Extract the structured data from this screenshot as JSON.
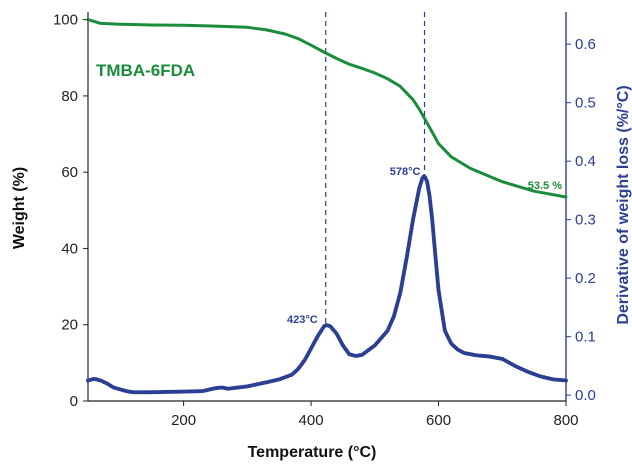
{
  "chart_data": {
    "type": "line",
    "title": "",
    "xlabel": "Temperature (°C)",
    "ylabel_left": "Weight (%)",
    "ylabel_right": "Derivative of weight loss (%/°C)",
    "xlim": [
      50,
      800
    ],
    "ylim_left": [
      0,
      102
    ],
    "ylim_right": [
      -0.01,
      0.655
    ],
    "x_ticks": [
      200,
      400,
      600,
      800
    ],
    "y_left_ticks": [
      0,
      20,
      40,
      60,
      80,
      100
    ],
    "y_right_ticks": [
      0.0,
      0.1,
      0.2,
      0.3,
      0.4,
      0.5,
      0.6
    ],
    "y_right_tick_labels": [
      "0.0",
      "0.1",
      "0.2",
      "0.3",
      "0.4",
      "0.5",
      "0.6"
    ],
    "grid": false,
    "colors": {
      "weight": "#1a8c3c",
      "derivative": "#2b3f93",
      "axis": "#222222"
    },
    "sample_label": "TMBA-6FDA",
    "series": [
      {
        "axis": "left",
        "line_style": "solid",
        "x": [
          50,
          70,
          100,
          150,
          200,
          250,
          300,
          330,
          360,
          380,
          400,
          420,
          440,
          460,
          480,
          500,
          520,
          540,
          560,
          570,
          580,
          590,
          600,
          620,
          650,
          700,
          750,
          800
        ],
        "values": [
          100,
          99,
          98.8,
          98.6,
          98.5,
          98.3,
          98.0,
          97.3,
          96.2,
          95.0,
          93.3,
          91.5,
          89.8,
          88.3,
          87.2,
          86.0,
          84.5,
          82.5,
          79.0,
          76.5,
          73.5,
          70.5,
          67.5,
          64.0,
          61.0,
          57.5,
          55.0,
          53.5
        ]
      },
      {
        "axis": "right",
        "line_style": "dotted",
        "x": [
          50,
          60,
          70,
          80,
          90,
          100,
          110,
          120,
          150,
          200,
          230,
          250,
          260,
          270,
          300,
          330,
          350,
          370,
          380,
          390,
          400,
          410,
          420,
          423,
          430,
          440,
          450,
          460,
          470,
          480,
          500,
          520,
          530,
          540,
          550,
          560,
          570,
          575,
          578,
          582,
          586,
          590,
          595,
          600,
          610,
          620,
          630,
          640,
          660,
          680,
          700,
          720,
          740,
          760,
          780,
          800
        ],
        "values": [
          0.025,
          0.028,
          0.025,
          0.02,
          0.013,
          0.01,
          0.007,
          0.005,
          0.005,
          0.006,
          0.007,
          0.012,
          0.013,
          0.011,
          0.015,
          0.022,
          0.027,
          0.035,
          0.045,
          0.06,
          0.08,
          0.1,
          0.117,
          0.12,
          0.118,
          0.105,
          0.085,
          0.07,
          0.067,
          0.069,
          0.085,
          0.11,
          0.135,
          0.175,
          0.235,
          0.3,
          0.355,
          0.372,
          0.375,
          0.365,
          0.34,
          0.3,
          0.24,
          0.18,
          0.11,
          0.088,
          0.078,
          0.072,
          0.068,
          0.066,
          0.062,
          0.05,
          0.04,
          0.032,
          0.027,
          0.025
        ]
      }
    ],
    "annotations": {
      "peak1": {
        "label": "423°C",
        "x": 423,
        "y": 0.12
      },
      "peak2": {
        "label": "578°C",
        "x": 578,
        "y": 0.375
      },
      "residual": {
        "label": "53.5 %",
        "x": 800,
        "y": 53.5
      }
    }
  }
}
